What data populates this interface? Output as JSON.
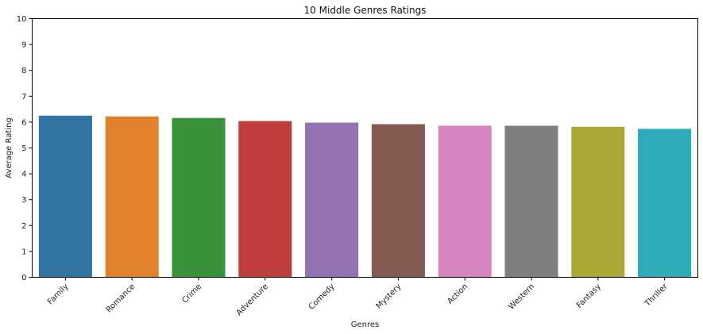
{
  "chart_data": {
    "type": "bar",
    "title": "10 Middle Genres Ratings",
    "xlabel": "Genres",
    "ylabel": "Average Rating",
    "categories": [
      "Family",
      "Romance",
      "Crime",
      "Adventure",
      "Comedy",
      "Mystery",
      "Action",
      "Western",
      "Fantasy",
      "Thriller"
    ],
    "values": [
      6.25,
      6.22,
      6.16,
      6.04,
      5.98,
      5.92,
      5.86,
      5.86,
      5.82,
      5.74
    ],
    "colors": [
      "#3274a1",
      "#e1812c",
      "#3a923a",
      "#c03d3e",
      "#9372b2",
      "#845b53",
      "#d684bd",
      "#7f7f7f",
      "#a9aa35",
      "#2eabb8"
    ],
    "ylim": [
      0,
      10
    ],
    "yticks": [
      0,
      1,
      2,
      3,
      4,
      5,
      6,
      7,
      8,
      9,
      10
    ],
    "grid": false,
    "legend": "none"
  }
}
